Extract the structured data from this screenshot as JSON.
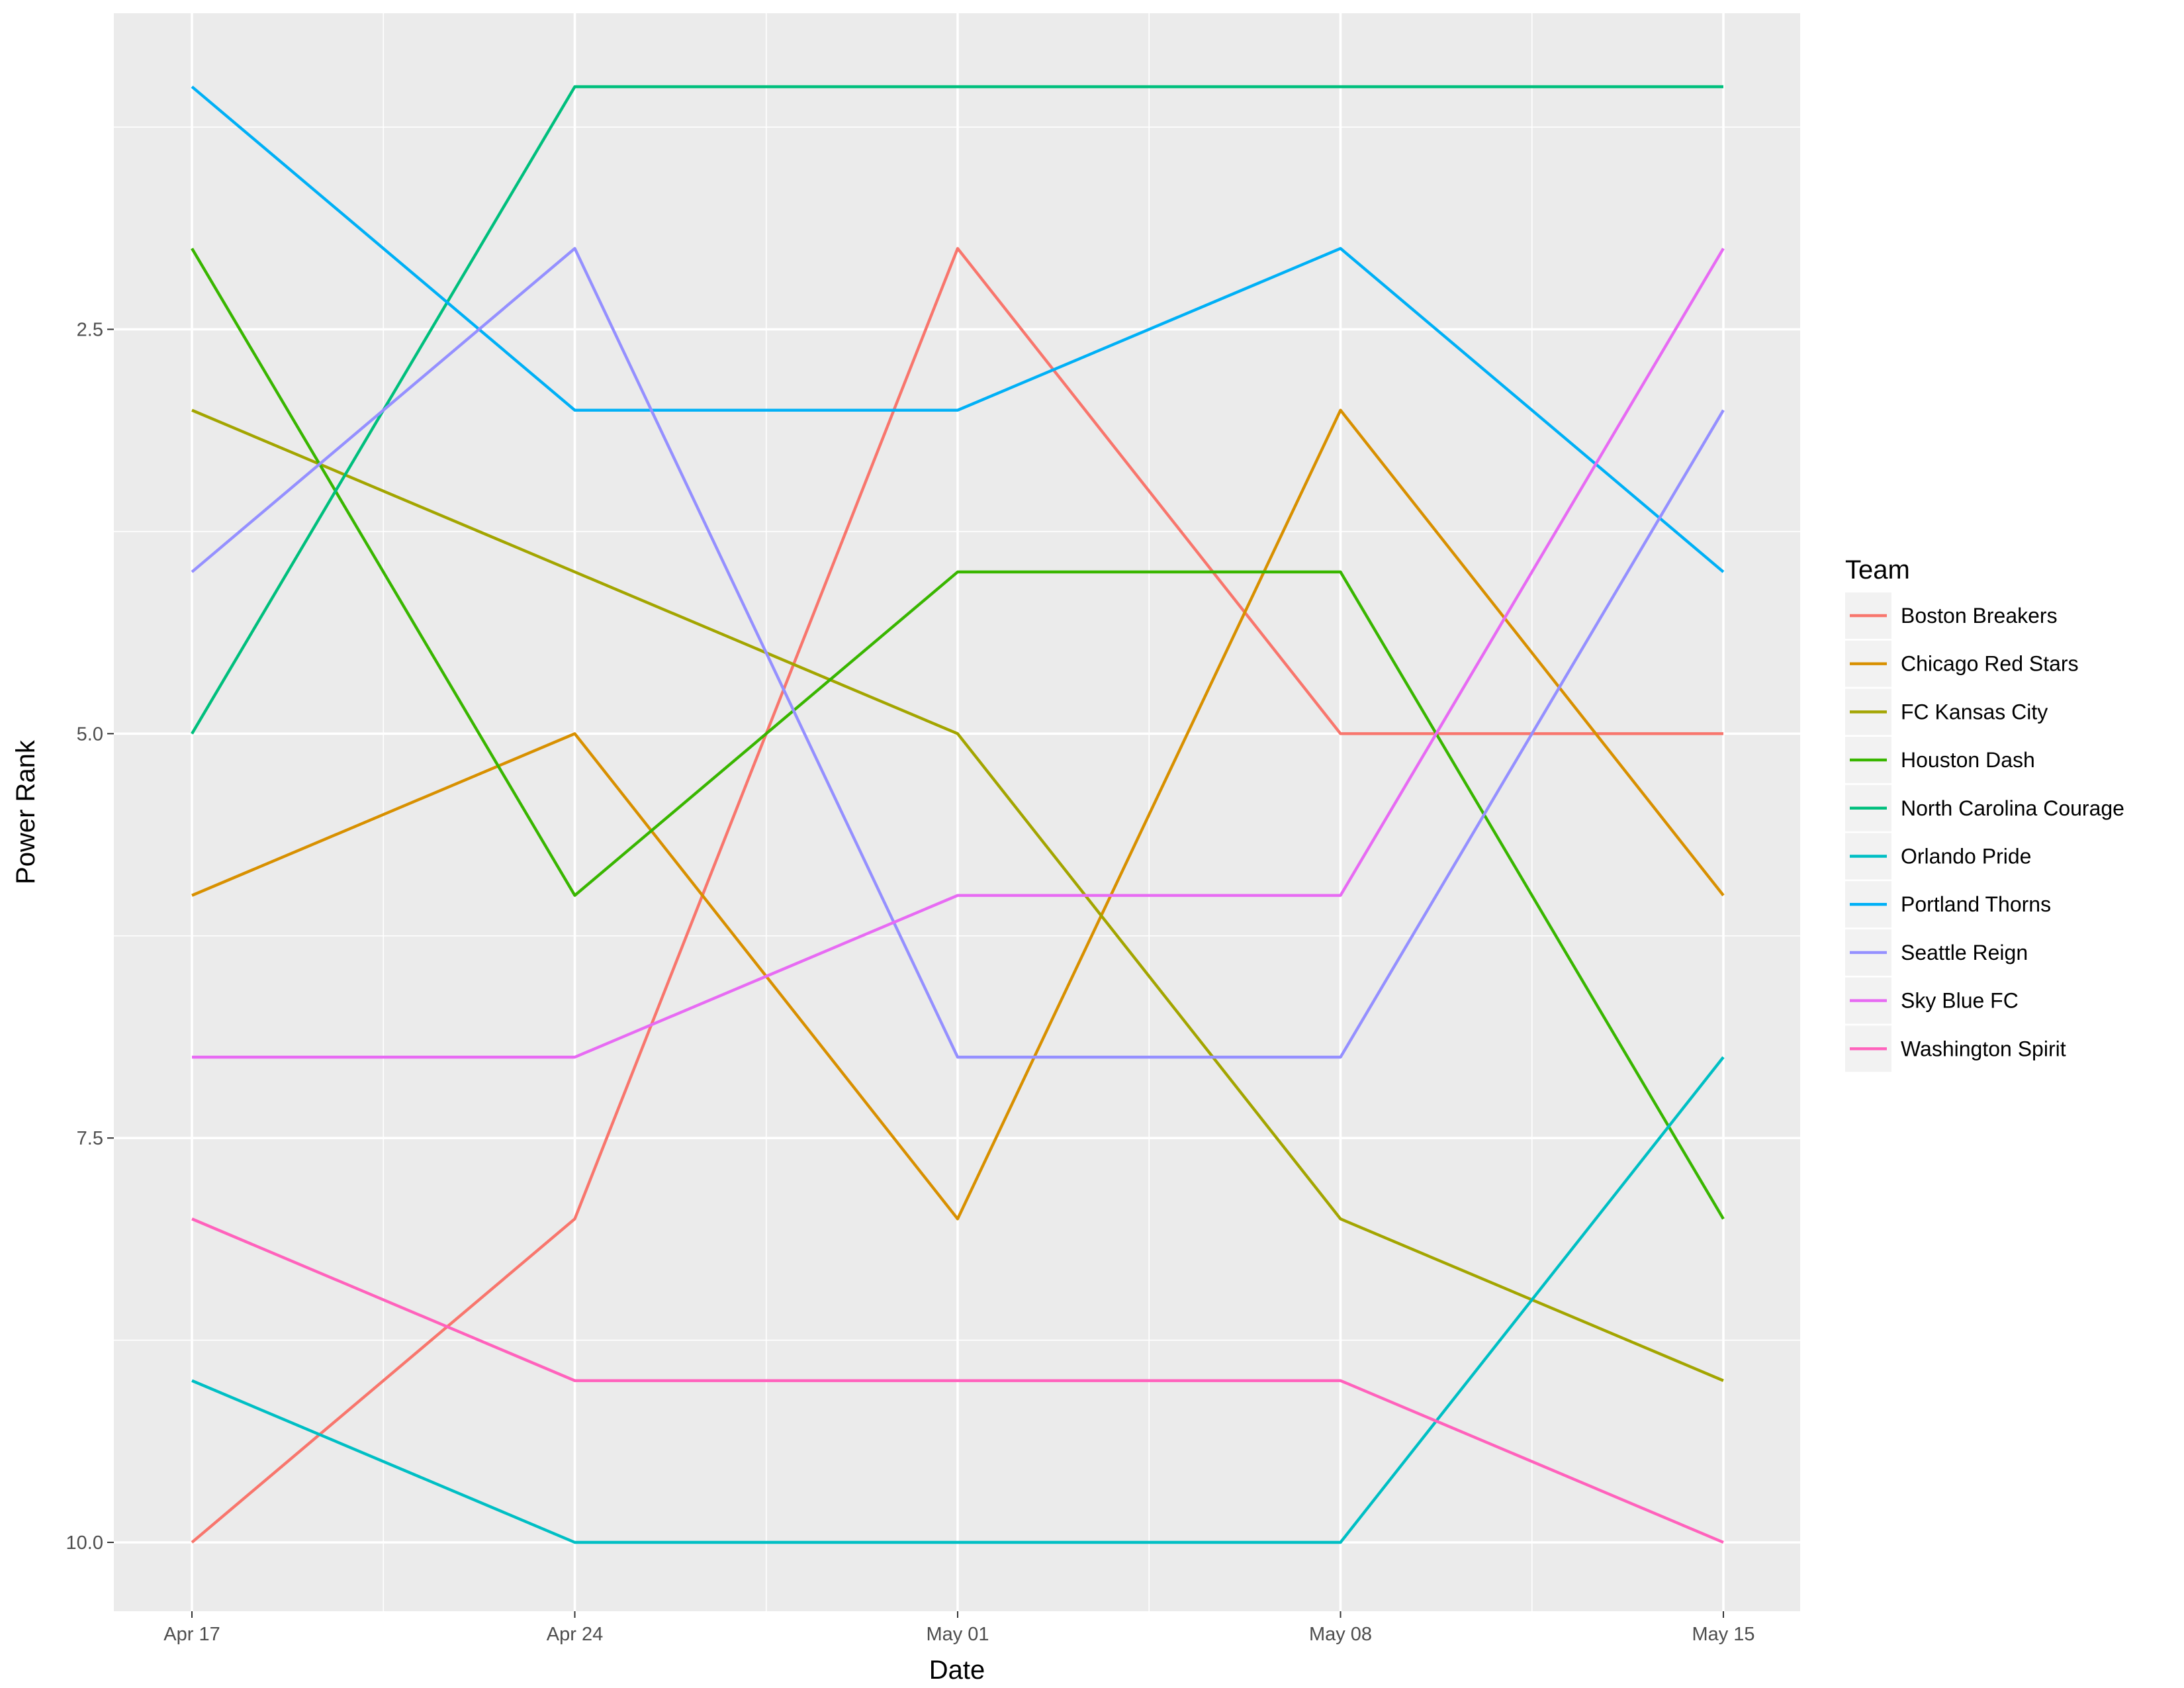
{
  "chart_data": {
    "type": "line",
    "xlabel": "Date",
    "ylabel": "Power Rank",
    "x": [
      "Apr 17",
      "Apr 24",
      "May 01",
      "May 08",
      "May 15"
    ],
    "x_tick_labels": [
      "Apr 17",
      "Apr 24",
      "May 01",
      "May 08",
      "May 15"
    ],
    "y_tick_labels": [
      "2.5",
      "5.0",
      "7.5",
      "10.0"
    ],
    "y_ticks": [
      2.5,
      5.0,
      7.5,
      10.0
    ],
    "ylim": [
      0.5,
      10.5
    ],
    "y_reversed": true,
    "grid": true,
    "legend": {
      "title": "Team",
      "position": "right"
    },
    "series": [
      {
        "name": "Boston Breakers",
        "color": "#F8766D",
        "values": [
          10,
          8,
          2,
          5,
          5
        ]
      },
      {
        "name": "Chicago Red Stars",
        "color": "#D89000",
        "values": [
          6,
          5,
          8,
          3,
          6
        ]
      },
      {
        "name": "FC Kansas City",
        "color": "#A3A500",
        "values": [
          3,
          4,
          5,
          8,
          9
        ]
      },
      {
        "name": "Houston Dash",
        "color": "#39B600",
        "values": [
          2,
          6,
          4,
          4,
          8
        ]
      },
      {
        "name": "North Carolina Courage",
        "color": "#00BF7D",
        "values": [
          5,
          1,
          1,
          1,
          1
        ]
      },
      {
        "name": "Orlando Pride",
        "color": "#00BFC4",
        "values": [
          9,
          10,
          10,
          10,
          7
        ]
      },
      {
        "name": "Portland Thorns",
        "color": "#00B0F6",
        "values": [
          1,
          3,
          3,
          2,
          4
        ]
      },
      {
        "name": "Seattle Reign",
        "color": "#9590FF",
        "values": [
          4,
          2,
          7,
          7,
          3
        ]
      },
      {
        "name": "Sky Blue FC",
        "color": "#E76BF3",
        "values": [
          7,
          7,
          6,
          6,
          2
        ]
      },
      {
        "name": "Washington Spirit",
        "color": "#FF62BC",
        "values": [
          8,
          9,
          9,
          9,
          10
        ]
      }
    ]
  }
}
